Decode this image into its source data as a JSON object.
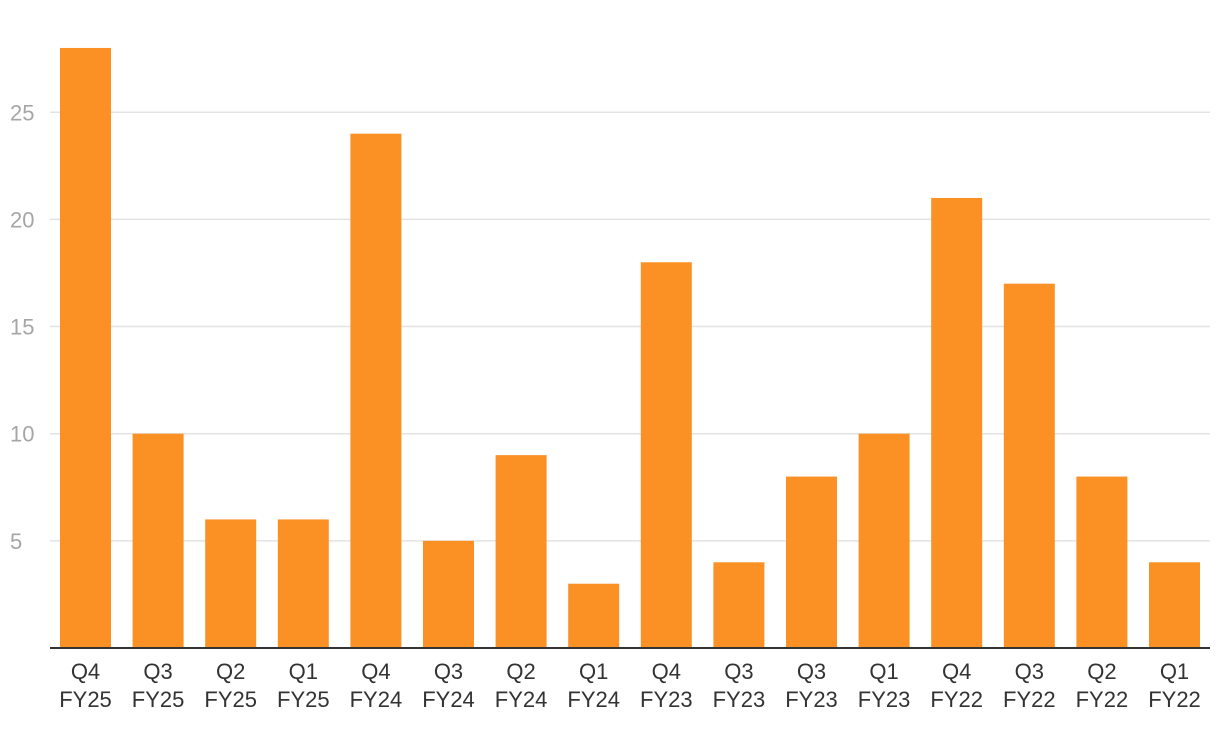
{
  "chart_data": {
    "type": "bar",
    "categories": [
      [
        "Q4",
        "FY25"
      ],
      [
        "Q3",
        "FY25"
      ],
      [
        "Q2",
        "FY25"
      ],
      [
        "Q1",
        "FY25"
      ],
      [
        "Q4",
        "FY24"
      ],
      [
        "Q3",
        "FY24"
      ],
      [
        "Q2",
        "FY24"
      ],
      [
        "Q1",
        "FY24"
      ],
      [
        "Q4",
        "FY23"
      ],
      [
        "Q3",
        "FY23"
      ],
      [
        "Q3",
        "FY23"
      ],
      [
        "Q1",
        "FY23"
      ],
      [
        "Q4",
        "FY22"
      ],
      [
        "Q3",
        "FY22"
      ],
      [
        "Q2",
        "FY22"
      ],
      [
        "Q1",
        "FY22"
      ]
    ],
    "values": [
      28,
      10,
      6,
      6,
      24,
      5,
      9,
      3,
      18,
      4,
      8,
      10,
      21,
      17,
      8,
      4
    ],
    "yticks": [
      5,
      10,
      15,
      20,
      25
    ],
    "ylim": [
      0,
      28
    ],
    "grid": true,
    "colors": {
      "bar": "#fb9124",
      "grid": "#e3e3e3",
      "axis": "#333333"
    }
  }
}
